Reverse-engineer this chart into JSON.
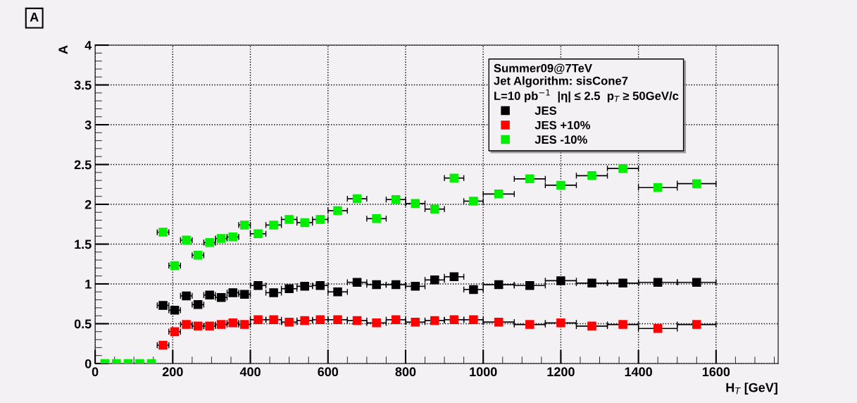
{
  "chart_data": {
    "type": "scatter",
    "annotations": [
      "A"
    ],
    "xlabel": "H$_{T}$ [GeV]",
    "ylabel": "A",
    "legend_title": "Summer09@7TeV\nJet Algorithm: sisCone7\nL=10 pb$^{−1}$  |η| ≤ 2.5  p$_{T}$ ≥ 50GeV/c",
    "x": [
      25,
      55,
      85,
      115,
      145,
      175,
      205,
      235,
      265,
      295,
      325,
      355,
      385,
      420,
      460,
      500,
      540,
      580,
      625,
      675,
      725,
      775,
      825,
      875,
      925,
      975,
      1040,
      1120,
      1200,
      1280,
      1360,
      1450,
      1550
    ],
    "series": [
      {
        "name": "JES",
        "color": "#000000",
        "values": [
          null,
          null,
          null,
          null,
          null,
          0.73,
          0.67,
          0.85,
          0.74,
          0.86,
          0.83,
          0.89,
          0.87,
          0.98,
          0.89,
          0.94,
          0.97,
          0.98,
          0.9,
          1.02,
          0.99,
          0.99,
          0.97,
          1.05,
          1.09,
          0.93,
          0.99,
          0.98,
          1.04,
          1.01,
          1.01,
          1.02,
          1.02
        ],
        "xerrors": [
          null,
          null,
          null,
          null,
          null,
          15,
          15,
          15,
          15,
          15,
          15,
          15,
          15,
          20,
          20,
          20,
          20,
          20,
          25,
          25,
          25,
          25,
          25,
          25,
          25,
          25,
          40,
          40,
          40,
          40,
          40,
          50,
          50
        ]
      },
      {
        "name": "JES +10%",
        "color": "#ff0000",
        "values": [
          null,
          null,
          null,
          null,
          null,
          0.23,
          0.4,
          0.49,
          0.47,
          0.47,
          0.49,
          0.51,
          0.49,
          0.55,
          0.55,
          0.52,
          0.54,
          0.55,
          0.55,
          0.54,
          0.51,
          0.55,
          0.52,
          0.54,
          0.55,
          0.55,
          0.52,
          0.49,
          0.51,
          0.47,
          0.49,
          0.44,
          0.49
        ],
        "xerrors": [
          null,
          null,
          null,
          null,
          null,
          15,
          15,
          15,
          15,
          15,
          15,
          15,
          15,
          20,
          20,
          20,
          20,
          20,
          25,
          25,
          25,
          25,
          25,
          25,
          25,
          25,
          40,
          40,
          40,
          40,
          40,
          50,
          50
        ]
      },
      {
        "name": "JES -10%",
        "color": "#00ee00",
        "values": [
          0,
          0,
          0,
          0,
          0,
          1.65,
          1.23,
          1.55,
          1.36,
          1.52,
          1.57,
          1.59,
          1.74,
          1.63,
          1.74,
          1.81,
          1.77,
          1.81,
          1.92,
          2.07,
          1.82,
          2.06,
          2.01,
          1.94,
          2.33,
          2.04,
          2.13,
          2.32,
          2.24,
          2.36,
          2.45,
          2.21,
          2.26
        ],
        "xerrors": [
          null,
          null,
          null,
          null,
          null,
          15,
          15,
          15,
          15,
          15,
          15,
          15,
          15,
          20,
          20,
          20,
          20,
          20,
          25,
          25,
          25,
          25,
          25,
          25,
          25,
          25,
          40,
          40,
          40,
          40,
          40,
          50,
          50
        ]
      }
    ],
    "xlim": [
      0,
      1760
    ],
    "xticks": [
      0,
      200,
      400,
      600,
      800,
      1000,
      1200,
      1400,
      1600
    ],
    "ylim": [
      0,
      4
    ],
    "yticks": [
      0,
      0.5,
      1,
      1.5,
      2,
      2.5,
      3,
      3.5,
      4
    ],
    "grid": true,
    "legend": "top right",
    "marker": "square"
  }
}
